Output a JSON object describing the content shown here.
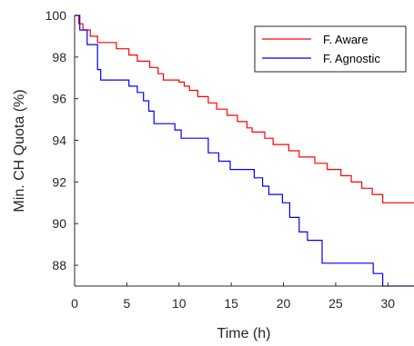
{
  "chart_data": {
    "type": "line",
    "xlabel": "Time (h)",
    "ylabel": "Min. CH Quota (%)",
    "xlim": [
      0,
      32.5
    ],
    "ylim": [
      87,
      100
    ],
    "xticks": [
      "0",
      "5",
      "10",
      "15",
      "20",
      "25",
      "30"
    ],
    "xtick_values": [
      0,
      5,
      10,
      15,
      20,
      25,
      30
    ],
    "yticks": [
      "88",
      "90",
      "92",
      "94",
      "96",
      "98",
      "100"
    ],
    "ytick_values": [
      88,
      90,
      92,
      94,
      96,
      98,
      100
    ],
    "grid": false,
    "legend_position": "top-right",
    "series": [
      {
        "name": "F. Aware",
        "color": "#ff0000",
        "points": [
          [
            0,
            100
          ],
          [
            0.4,
            99.6
          ],
          [
            0.8,
            99.3
          ],
          [
            1.5,
            99.0
          ],
          [
            2.2,
            98.7
          ],
          [
            4.0,
            98.4
          ],
          [
            5.2,
            98.1
          ],
          [
            6.0,
            97.8
          ],
          [
            7.2,
            97.5
          ],
          [
            8.0,
            97.2
          ],
          [
            8.5,
            96.9
          ],
          [
            10.0,
            96.8
          ],
          [
            10.5,
            96.6
          ],
          [
            11.0,
            96.4
          ],
          [
            11.8,
            96.1
          ],
          [
            12.8,
            95.8
          ],
          [
            13.6,
            95.5
          ],
          [
            14.6,
            95.2
          ],
          [
            15.6,
            94.9
          ],
          [
            16.5,
            94.6
          ],
          [
            17.0,
            94.4
          ],
          [
            18.2,
            94.1
          ],
          [
            19.0,
            93.8
          ],
          [
            20.5,
            93.5
          ],
          [
            21.5,
            93.2
          ],
          [
            23.0,
            92.9
          ],
          [
            24.2,
            92.6
          ],
          [
            25.5,
            92.3
          ],
          [
            26.5,
            92.0
          ],
          [
            27.5,
            91.7
          ],
          [
            28.5,
            91.4
          ],
          [
            29.5,
            91.0
          ],
          [
            32.5,
            91.0
          ]
        ]
      },
      {
        "name": "F. Agnostic",
        "color": "#0000ff",
        "points": [
          [
            0,
            100
          ],
          [
            0.5,
            99.3
          ],
          [
            1.2,
            98.6
          ],
          [
            2.2,
            97.4
          ],
          [
            2.5,
            96.9
          ],
          [
            5.2,
            96.6
          ],
          [
            6.0,
            96.3
          ],
          [
            6.6,
            95.9
          ],
          [
            7.1,
            95.4
          ],
          [
            7.6,
            94.8
          ],
          [
            9.6,
            94.5
          ],
          [
            10.2,
            94.1
          ],
          [
            12.8,
            93.4
          ],
          [
            13.8,
            93.0
          ],
          [
            14.9,
            92.6
          ],
          [
            17.2,
            92.2
          ],
          [
            18.0,
            91.8
          ],
          [
            18.6,
            91.4
          ],
          [
            19.9,
            91.0
          ],
          [
            20.6,
            90.3
          ],
          [
            21.5,
            89.6
          ],
          [
            22.3,
            89.2
          ],
          [
            23.7,
            88.1
          ],
          [
            28.6,
            87.6
          ],
          [
            29.5,
            87.0
          ],
          [
            32.5,
            87.0
          ]
        ]
      }
    ]
  }
}
